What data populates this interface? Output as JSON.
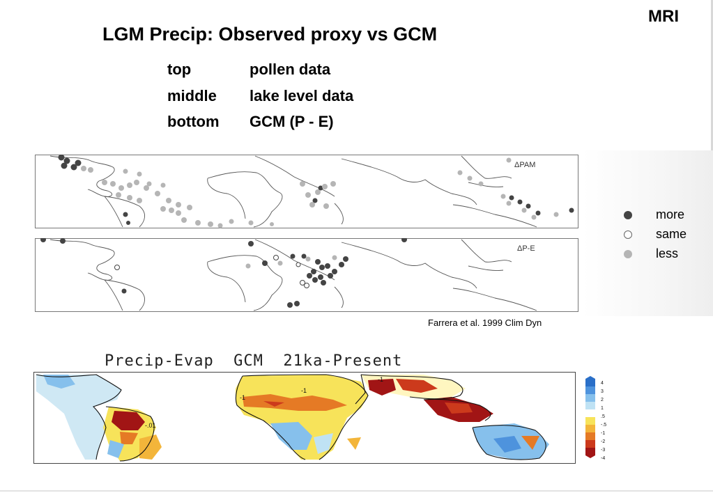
{
  "header": {
    "org": "MRI",
    "title": "LGM Precip: Observed proxy vs GCM"
  },
  "panel_legend": [
    {
      "position": "top",
      "description": "pollen data"
    },
    {
      "position": "middle",
      "description": "lake level data"
    },
    {
      "position": "bottom",
      "description": "GCM (P - E)"
    }
  ],
  "maps": {
    "pam_label": "ΔPAM",
    "pe_label": "ΔP-E"
  },
  "dot_legend": [
    {
      "label": "more",
      "color": "#444444",
      "style": "filled"
    },
    {
      "label": "same",
      "color": "#ffffff",
      "style": "open"
    },
    {
      "label": "less",
      "color": "#b5b5b5",
      "style": "filled"
    }
  ],
  "citation": "Farrera et al. 1999 Clim Dyn",
  "gcm": {
    "title": "Precip-Evap  GCM  21ka-Present",
    "colorbar_colors": [
      "#2a6fc8",
      "#4e93dd",
      "#86c0ec",
      "#bfe2f4",
      "#ffffff",
      "#f7e35a",
      "#f3b53a",
      "#e57a25",
      "#cc3a1c",
      "#a11515"
    ]
  }
}
